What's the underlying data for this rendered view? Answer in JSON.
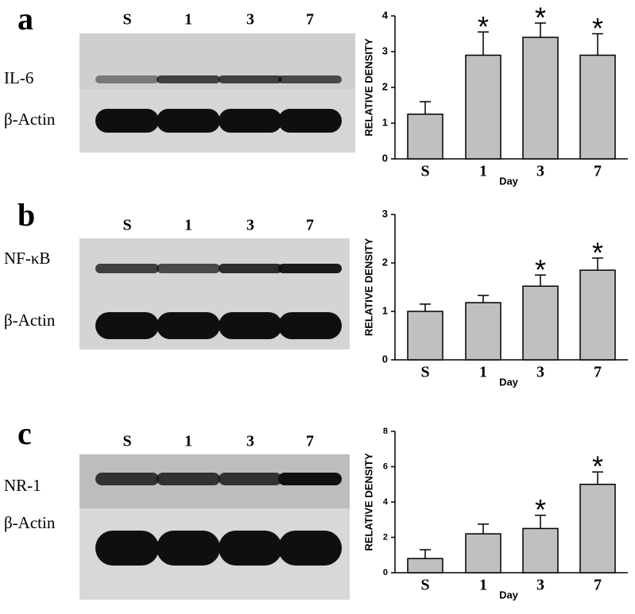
{
  "panels": [
    {
      "letter": "a",
      "lanes": [
        "S",
        "1",
        "3",
        "7"
      ],
      "rows": [
        "IL-6",
        "β-Actin"
      ]
    },
    {
      "letter": "b",
      "lanes": [
        "S",
        "1",
        "3",
        "7"
      ],
      "rows": [
        "NF-κB",
        "β-Actin"
      ]
    },
    {
      "letter": "c",
      "lanes": [
        "S",
        "1",
        "3",
        "7"
      ],
      "rows": [
        "NR-1",
        "β-Actin"
      ]
    }
  ],
  "chart_data": [
    {
      "type": "bar",
      "categories": [
        "S",
        "1",
        "3",
        "7"
      ],
      "values": [
        1.25,
        2.9,
        3.4,
        2.9
      ],
      "errors": [
        0.35,
        0.65,
        0.4,
        0.6
      ],
      "markers": [
        null,
        "*",
        "*",
        "*"
      ],
      "color": "#c0c0c0",
      "x_label": "Day",
      "y_label": "RELATIVE DENSITY",
      "ylim": [
        0,
        4
      ],
      "yticks": [
        0,
        1,
        2,
        3,
        4
      ]
    },
    {
      "type": "bar",
      "categories": [
        "S",
        "1",
        "3",
        "7"
      ],
      "values": [
        1.0,
        1.18,
        1.52,
        1.85
      ],
      "errors": [
        0.15,
        0.15,
        0.23,
        0.25
      ],
      "markers": [
        null,
        null,
        "*",
        "*"
      ],
      "color": "#c0c0c0",
      "x_label": "Day",
      "y_label": "RELATIVE DENSITY",
      "ylim": [
        0,
        3
      ],
      "yticks": [
        0,
        1,
        2,
        3
      ]
    },
    {
      "type": "bar",
      "categories": [
        "S",
        "1",
        "3",
        "7"
      ],
      "values": [
        0.8,
        2.2,
        2.5,
        5.0
      ],
      "errors": [
        0.5,
        0.55,
        0.75,
        0.7
      ],
      "markers": [
        null,
        null,
        "*",
        "*"
      ],
      "color": "#c0c0c0",
      "x_label": "Day",
      "y_label": "RELATIVE DENSITY",
      "ylim": [
        0,
        8
      ],
      "yticks": [
        0,
        2,
        4,
        6,
        8
      ]
    }
  ]
}
